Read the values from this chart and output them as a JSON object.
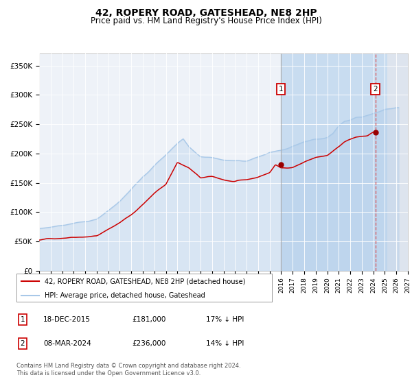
{
  "title": "42, ROPERY ROAD, GATESHEAD, NE8 2HP",
  "subtitle": "Price paid vs. HM Land Registry's House Price Index (HPI)",
  "title_fontsize": 10,
  "subtitle_fontsize": 8.5,
  "xlim_start": 1995.0,
  "xlim_end": 2027.0,
  "ylim_min": 0,
  "ylim_max": 370000,
  "hpi_color": "#a8c8e8",
  "hpi_fill_color": "#d0e4f4",
  "price_color": "#cc0000",
  "marker_color": "#990000",
  "vline1_color": "#aaaaaa",
  "vline2_color": "#dd4444",
  "shade_color": "#c8dcf0",
  "point1_x": 2015.96,
  "point1_y": 181000,
  "point2_x": 2024.18,
  "point2_y": 236000,
  "legend_label1": "42, ROPERY ROAD, GATESHEAD, NE8 2HP (detached house)",
  "legend_label2": "HPI: Average price, detached house, Gateshead",
  "table_row1": [
    "1",
    "18-DEC-2015",
    "£181,000",
    "17% ↓ HPI"
  ],
  "table_row2": [
    "2",
    "08-MAR-2024",
    "£236,000",
    "14% ↓ HPI"
  ],
  "footnote": "Contains HM Land Registry data © Crown copyright and database right 2024.\nThis data is licensed under the Open Government Licence v3.0.",
  "yticks": [
    0,
    50000,
    100000,
    150000,
    200000,
    250000,
    300000,
    350000
  ],
  "ytick_labels": [
    "£0",
    "£50K",
    "£100K",
    "£150K",
    "£200K",
    "£250K",
    "£300K",
    "£350K"
  ],
  "background_color": "#ffffff",
  "plot_bg_color": "#eef2f8"
}
